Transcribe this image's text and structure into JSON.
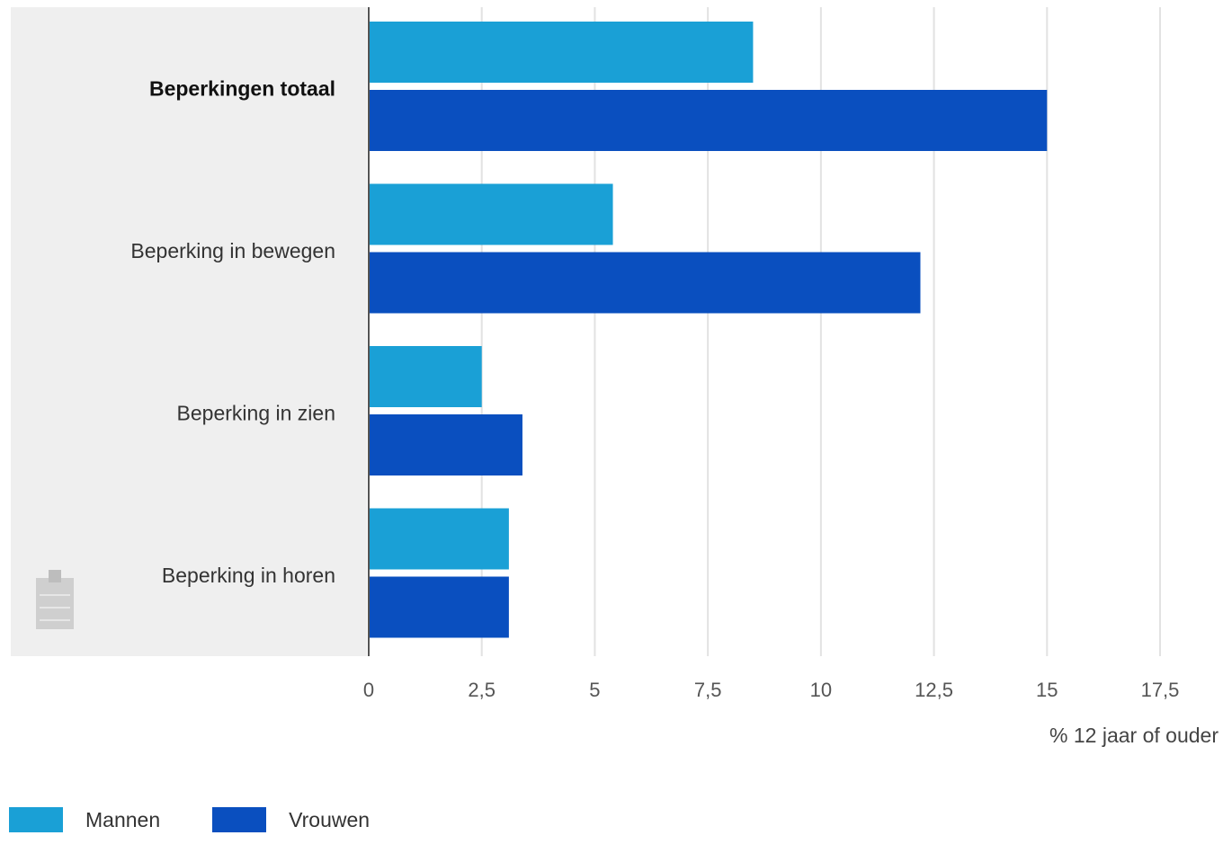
{
  "chart_data": {
    "type": "bar",
    "orientation": "horizontal",
    "categories": [
      "Beperkingen totaal",
      "Beperking in bewegen",
      "Beperking in zien",
      "Beperking in horen"
    ],
    "series": [
      {
        "name": "Mannen",
        "values": [
          8.5,
          5.4,
          2.5,
          3.1
        ],
        "color": "#1aa0d6"
      },
      {
        "name": "Vrouwen",
        "values": [
          15.0,
          12.2,
          3.4,
          3.1
        ],
        "color": "#0a4fbf"
      }
    ],
    "xlabel": "% 12 jaar of ouder",
    "xlim": [
      0,
      17.5
    ],
    "xticks": [
      "0",
      "2,5",
      "5",
      "7,5",
      "10",
      "12,5",
      "15",
      "17,5"
    ],
    "highlighted_category": "Beperkingen totaal",
    "grid": true,
    "legend_position": "bottom-left"
  },
  "icons": {
    "copy": "clipboard-icon"
  }
}
